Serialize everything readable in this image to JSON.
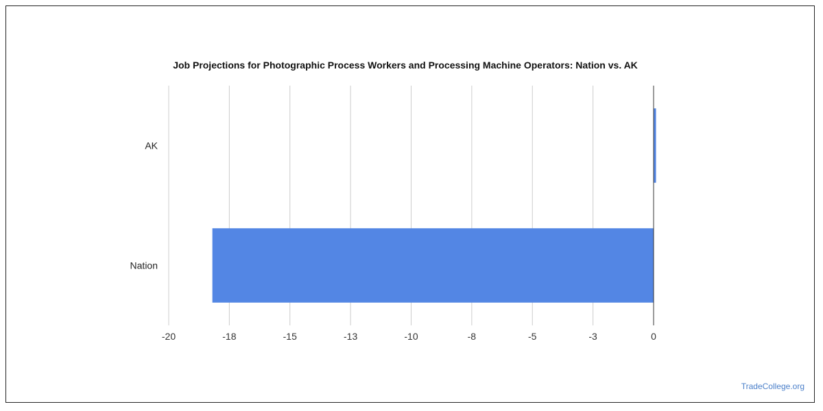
{
  "watermark": "TradeCollege.org",
  "chart_data": {
    "type": "bar",
    "orientation": "horizontal",
    "title": "Job Projections for Photographic Process Workers and Processing Machine Operators: Nation vs. AK",
    "categories": [
      "AK",
      "Nation"
    ],
    "values": [
      0.1,
      -18.2
    ],
    "x_ticks": [
      "-20",
      "-18",
      "-15",
      "-13",
      "-10",
      "-8",
      "-5",
      "-3",
      "0"
    ],
    "xlim": [
      -20,
      0
    ],
    "grid": true,
    "bar_color": "#5386e4"
  }
}
